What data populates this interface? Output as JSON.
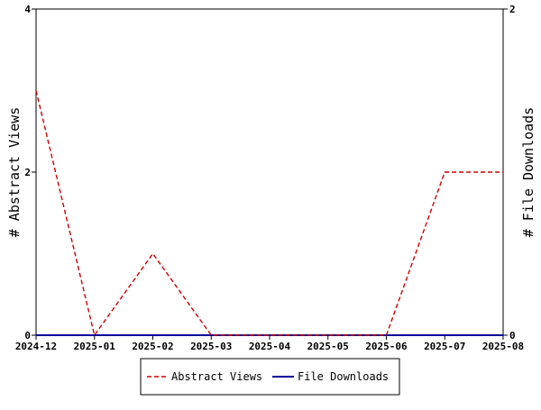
{
  "chart_data": {
    "type": "line",
    "x": [
      "2024-12",
      "2025-01",
      "2025-02",
      "2025-03",
      "2025-04",
      "2025-05",
      "2025-06",
      "2025-07",
      "2025-08"
    ],
    "x_tick_labels": [
      "2024-12",
      "2025-01",
      "2025-02",
      "2025-03",
      "2025-04",
      "2025-05",
      "2025-06",
      "2025-07",
      "2025-08"
    ],
    "y_left": {
      "label": "# Abstract Views",
      "ylim": [
        0,
        4
      ],
      "ticks": [
        "0",
        "2",
        "4"
      ]
    },
    "y_right": {
      "label": "# File Downloads",
      "ylim": [
        0,
        2
      ],
      "ticks": [
        "0",
        "2"
      ]
    },
    "series": [
      {
        "name": "Abstract Views",
        "axis": "left",
        "color": "#cc0000",
        "style": "dashed",
        "values": [
          3,
          0,
          1,
          0,
          0,
          0,
          0,
          2,
          2
        ]
      },
      {
        "name": "File Downloads",
        "axis": "right",
        "color": "#000099",
        "style": "solid",
        "values": [
          0,
          0,
          0,
          0,
          0,
          0,
          0,
          0,
          0
        ]
      }
    ],
    "grid": false,
    "legend_position": "bottom-center"
  }
}
